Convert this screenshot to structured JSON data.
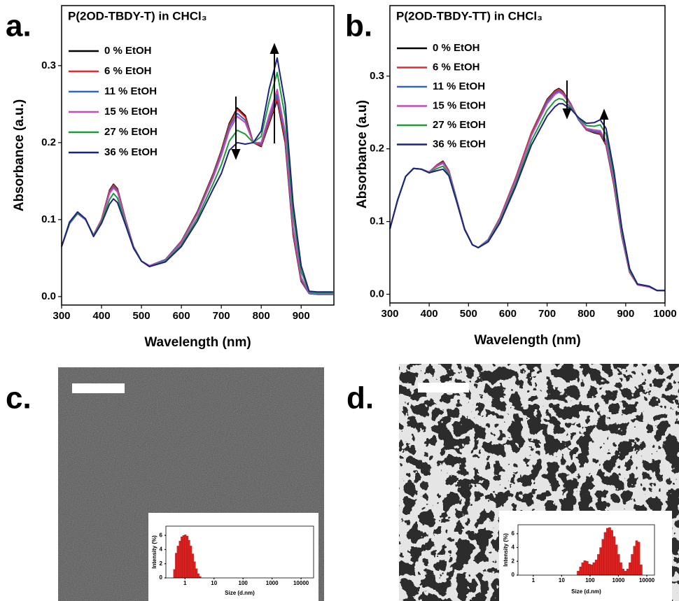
{
  "chart_data": [
    {
      "type": "line",
      "label": "a.",
      "title": "P(2OD-TBDY-T) in CHCl₃",
      "xlabel": "Wavelength (nm)",
      "ylabel": "Absorbance (a.u.)",
      "xlim": [
        300,
        982
      ],
      "ylim": [
        -0.011,
        0.378
      ],
      "xticks": [
        300,
        400,
        500,
        600,
        700,
        800,
        900
      ],
      "yticks": [
        {
          "value": 0,
          "label": "0.0"
        },
        0.1,
        0.2,
        0.3
      ],
      "legend": "upper left",
      "x": [
        300,
        320,
        340,
        360,
        380,
        400,
        420,
        430,
        440,
        460,
        480,
        500,
        520,
        560,
        600,
        640,
        680,
        700,
        720,
        740,
        760,
        780,
        800,
        820,
        840,
        860,
        880,
        900,
        920,
        940,
        960,
        980
      ],
      "series": [
        {
          "name": "0 % EtOH",
          "color": "#000000",
          "values": [
            0.065,
            0.095,
            0.108,
            0.1,
            0.08,
            0.1,
            0.138,
            0.146,
            0.14,
            0.1,
            0.065,
            0.046,
            0.04,
            0.048,
            0.072,
            0.11,
            0.16,
            0.19,
            0.225,
            0.245,
            0.235,
            0.2,
            0.195,
            0.225,
            0.255,
            0.2,
            0.08,
            0.02,
            0.004,
            0.003,
            0.003,
            0.003
          ]
        },
        {
          "name": "6 % EtOH",
          "color": "#e8282a",
          "values": [
            0.065,
            0.095,
            0.108,
            0.1,
            0.08,
            0.1,
            0.137,
            0.145,
            0.139,
            0.1,
            0.065,
            0.046,
            0.04,
            0.048,
            0.072,
            0.109,
            0.159,
            0.189,
            0.223,
            0.243,
            0.233,
            0.2,
            0.196,
            0.227,
            0.258,
            0.203,
            0.082,
            0.021,
            0.004,
            0.003,
            0.003,
            0.003
          ]
        },
        {
          "name": "11 % EtOH",
          "color": "#3565c0",
          "values": [
            0.065,
            0.095,
            0.108,
            0.1,
            0.08,
            0.099,
            0.135,
            0.143,
            0.137,
            0.099,
            0.065,
            0.046,
            0.04,
            0.048,
            0.071,
            0.108,
            0.157,
            0.186,
            0.22,
            0.238,
            0.229,
            0.2,
            0.198,
            0.232,
            0.263,
            0.208,
            0.086,
            0.023,
            0.004,
            0.003,
            0.003,
            0.003
          ]
        },
        {
          "name": "15 % EtOH",
          "color": "#c24db8",
          "values": [
            0.065,
            0.096,
            0.109,
            0.1,
            0.08,
            0.099,
            0.134,
            0.141,
            0.136,
            0.098,
            0.065,
            0.046,
            0.04,
            0.047,
            0.07,
            0.107,
            0.155,
            0.183,
            0.216,
            0.234,
            0.226,
            0.2,
            0.2,
            0.236,
            0.269,
            0.213,
            0.09,
            0.025,
            0.005,
            0.004,
            0.004,
            0.004
          ]
        },
        {
          "name": "27 % EtOH",
          "color": "#1f9a3a",
          "values": [
            0.065,
            0.096,
            0.109,
            0.101,
            0.079,
            0.097,
            0.126,
            0.134,
            0.128,
            0.095,
            0.064,
            0.046,
            0.039,
            0.046,
            0.067,
            0.102,
            0.147,
            0.171,
            0.202,
            0.216,
            0.211,
            0.2,
            0.208,
            0.254,
            0.291,
            0.233,
            0.106,
            0.033,
            0.006,
            0.005,
            0.005,
            0.005
          ]
        },
        {
          "name": "36 % EtOH",
          "color": "#1c2380",
          "values": [
            0.065,
            0.097,
            0.11,
            0.101,
            0.078,
            0.095,
            0.12,
            0.127,
            0.122,
            0.093,
            0.063,
            0.046,
            0.039,
            0.045,
            0.065,
            0.098,
            0.14,
            0.16,
            0.19,
            0.2,
            0.198,
            0.2,
            0.215,
            0.27,
            0.31,
            0.25,
            0.12,
            0.04,
            0.007,
            0.006,
            0.006,
            0.006
          ]
        }
      ]
    },
    {
      "type": "line",
      "label": "b.",
      "title": "P(2OD-TBDY-TT) in CHCl₃",
      "xlabel": "Wavelength (nm)",
      "ylabel": "Absorbance (a.u)",
      "xlim": [
        300,
        1000
      ],
      "ylim": [
        -0.012,
        0.397
      ],
      "xticks": [
        300,
        400,
        500,
        600,
        700,
        800,
        900,
        1000
      ],
      "yticks": [
        {
          "value": 0,
          "label": "0.0"
        },
        0.1,
        0.2,
        0.3
      ],
      "legend": "upper left",
      "x": [
        300,
        320,
        340,
        360,
        380,
        400,
        420,
        435,
        450,
        470,
        490,
        510,
        525,
        550,
        580,
        620,
        660,
        700,
        720,
        730,
        740,
        760,
        780,
        800,
        820,
        835,
        850,
        870,
        890,
        910,
        930,
        960,
        980,
        1000
      ],
      "series": [
        {
          "name": "0 % EtOH",
          "color": "#000000",
          "values": [
            0.09,
            0.13,
            0.162,
            0.173,
            0.172,
            0.168,
            0.178,
            0.183,
            0.17,
            0.13,
            0.09,
            0.068,
            0.064,
            0.075,
            0.105,
            0.16,
            0.222,
            0.268,
            0.28,
            0.283,
            0.279,
            0.262,
            0.24,
            0.226,
            0.222,
            0.22,
            0.205,
            0.15,
            0.08,
            0.03,
            0.013,
            0.01,
            0.005,
            0.005
          ]
        },
        {
          "name": "6 % EtOH",
          "color": "#e8282a",
          "values": [
            0.09,
            0.13,
            0.162,
            0.173,
            0.172,
            0.168,
            0.178,
            0.182,
            0.17,
            0.13,
            0.09,
            0.068,
            0.064,
            0.075,
            0.105,
            0.16,
            0.222,
            0.267,
            0.279,
            0.282,
            0.278,
            0.262,
            0.24,
            0.226,
            0.223,
            0.221,
            0.206,
            0.151,
            0.081,
            0.03,
            0.013,
            0.01,
            0.005,
            0.005
          ]
        },
        {
          "name": "11 % EtOH",
          "color": "#3565c0",
          "values": [
            0.09,
            0.13,
            0.162,
            0.173,
            0.172,
            0.168,
            0.177,
            0.181,
            0.169,
            0.13,
            0.09,
            0.068,
            0.064,
            0.075,
            0.104,
            0.158,
            0.219,
            0.265,
            0.277,
            0.28,
            0.276,
            0.261,
            0.24,
            0.227,
            0.224,
            0.223,
            0.208,
            0.153,
            0.082,
            0.031,
            0.013,
            0.01,
            0.005,
            0.005
          ]
        },
        {
          "name": "15 % EtOH",
          "color": "#c24db8",
          "values": [
            0.09,
            0.13,
            0.162,
            0.173,
            0.172,
            0.168,
            0.176,
            0.18,
            0.168,
            0.129,
            0.09,
            0.068,
            0.064,
            0.074,
            0.103,
            0.157,
            0.218,
            0.262,
            0.275,
            0.278,
            0.275,
            0.26,
            0.241,
            0.228,
            0.226,
            0.225,
            0.211,
            0.155,
            0.083,
            0.031,
            0.013,
            0.01,
            0.005,
            0.005
          ]
        },
        {
          "name": "27 % EtOH",
          "color": "#1f9a3a",
          "values": [
            0.09,
            0.13,
            0.162,
            0.173,
            0.172,
            0.167,
            0.173,
            0.176,
            0.165,
            0.128,
            0.089,
            0.068,
            0.064,
            0.073,
            0.1,
            0.152,
            0.211,
            0.253,
            0.266,
            0.269,
            0.268,
            0.257,
            0.242,
            0.232,
            0.231,
            0.233,
            0.22,
            0.163,
            0.088,
            0.033,
            0.014,
            0.011,
            0.005,
            0.005
          ]
        },
        {
          "name": "36 % EtOH",
          "color": "#1c2380",
          "values": [
            0.09,
            0.13,
            0.162,
            0.173,
            0.172,
            0.167,
            0.17,
            0.172,
            0.163,
            0.127,
            0.089,
            0.068,
            0.064,
            0.072,
            0.098,
            0.148,
            0.205,
            0.245,
            0.258,
            0.262,
            0.262,
            0.255,
            0.243,
            0.235,
            0.236,
            0.24,
            0.228,
            0.17,
            0.092,
            0.035,
            0.014,
            0.011,
            0.005,
            0.005
          ]
        }
      ]
    },
    {
      "type": "histogram",
      "label": "c.",
      "xlabel": "Size (d.nm)",
      "ylabel": "Intensity (%)",
      "xscale": "log",
      "color": "#e0201e",
      "xlim": [
        0.22,
        27000
      ],
      "ylim": [
        0,
        7.3
      ],
      "xticks": [
        1,
        10,
        100,
        1000,
        10000
      ],
      "yticks": [
        0,
        2,
        4,
        6
      ],
      "bins": [
        0.4,
        0.46,
        0.53,
        0.62,
        0.72,
        0.83,
        0.96,
        1.11,
        1.29,
        1.49,
        1.73,
        2.0,
        2.32,
        2.69,
        3.11,
        3.61
      ],
      "values": [
        1.2,
        3.5,
        4.5,
        5.2,
        5.8,
        6.0,
        6.1,
        5.9,
        5.3,
        4.5,
        3.4,
        2.3,
        1.3,
        0.6,
        0.2
      ]
    },
    {
      "type": "histogram",
      "label": "d.",
      "xlabel": "Size (d.nm)",
      "ylabel": "Intensity (%)",
      "xscale": "log",
      "color": "#e0201e",
      "xlim": [
        0.29,
        18700
      ],
      "ylim": [
        0,
        7.3
      ],
      "xticks": [
        1,
        10,
        100,
        1000,
        10000
      ],
      "yticks": [
        0,
        2,
        4,
        6
      ],
      "bins": [
        35,
        42,
        50,
        60,
        73,
        87,
        105,
        125,
        150,
        181,
        217,
        260,
        312,
        375,
        450,
        540,
        648,
        778,
        933,
        1120,
        1344,
        1613,
        1935,
        2322,
        2787,
        3344,
        4013,
        4815,
        5778,
        6934
      ],
      "values": [
        0.6,
        1.2,
        1.8,
        2.1,
        2.0,
        1.6,
        1.5,
        1.8,
        2.2,
        3.0,
        4.0,
        5.2,
        6.2,
        6.8,
        6.9,
        6.5,
        5.6,
        4.4,
        3.0,
        1.8,
        0.9,
        0.6,
        0.9,
        1.8,
        3.0,
        4.2,
        5.0,
        4.8,
        1.5
      ]
    }
  ]
}
